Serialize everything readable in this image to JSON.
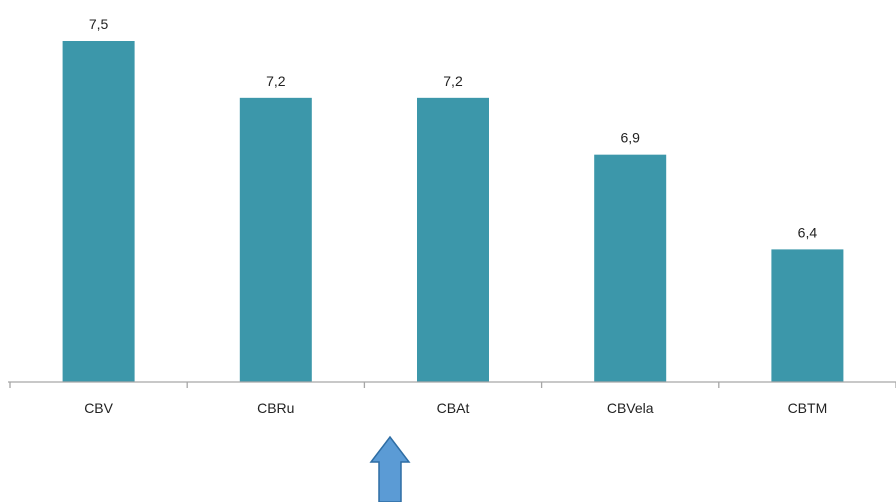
{
  "chart_data": {
    "type": "bar",
    "categories": [
      "CBV",
      "CBRu",
      "CBAt",
      "CBVela",
      "CBTM"
    ],
    "values": [
      7.5,
      7.2,
      7.2,
      6.9,
      6.4
    ],
    "value_labels": [
      "7,5",
      "7,2",
      "7,2",
      "6,9",
      "6,4"
    ],
    "title": "",
    "xlabel": "",
    "ylabel": "",
    "ylim": [
      5.7,
      7.5
    ],
    "grid": false,
    "legend": "none",
    "colors": {
      "bar": "#3c97aa",
      "axis": "#a6a6a6",
      "arrow_fill": "#5b9bd5",
      "arrow_stroke": "#2e6da4"
    }
  },
  "annotation": {
    "arrow_icon": "up-arrow-icon",
    "points_to_category": "CBAt"
  }
}
